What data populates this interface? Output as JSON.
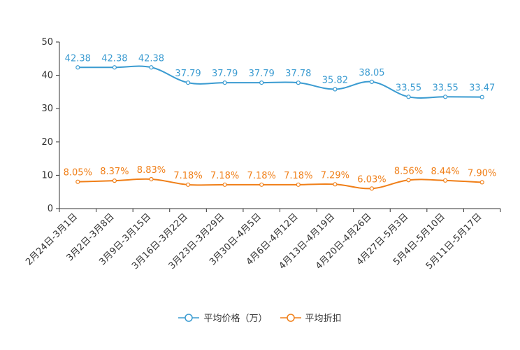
{
  "chart_data": {
    "type": "line",
    "categories": [
      "2月24日-3月1日",
      "3月2日-3月8日",
      "3月9日-3月15日",
      "3月16日-3月22日",
      "3月23日-3月29日",
      "3月30日-4月5日",
      "4月6日-4月12日",
      "4月13日-4月19日",
      "4月20日-4月26日",
      "4月27日-5月3日",
      "5月4日-5月10日",
      "5月11日-5月17日"
    ],
    "y_ticks": [
      "0",
      "10",
      "20",
      "30",
      "40",
      "50"
    ],
    "ylim": [
      0,
      50
    ],
    "series": [
      {
        "name": "平均价格（万）",
        "color": "#3a9bd1",
        "values": [
          42.38,
          42.38,
          42.38,
          37.79,
          37.79,
          37.79,
          37.78,
          35.82,
          38.05,
          33.55,
          33.55,
          33.47
        ],
        "labels": [
          "42.38",
          "42.38",
          "42.38",
          "37.79",
          "37.79",
          "37.79",
          "37.78",
          "35.82",
          "38.05",
          "33.55",
          "33.55",
          "33.47"
        ]
      },
      {
        "name": "平均折扣",
        "color": "#f07f18",
        "values": [
          8.05,
          8.37,
          8.83,
          7.18,
          7.18,
          7.18,
          7.18,
          7.29,
          6.03,
          8.56,
          8.44,
          7.9
        ],
        "labels": [
          "8.05%",
          "8.37%",
          "8.83%",
          "7.18%",
          "7.18%",
          "7.18%",
          "7.18%",
          "7.29%",
          "6.03%",
          "8.56%",
          "8.44%",
          "7.90%"
        ]
      }
    ],
    "legend_position": "bottom-center",
    "grid": false
  }
}
